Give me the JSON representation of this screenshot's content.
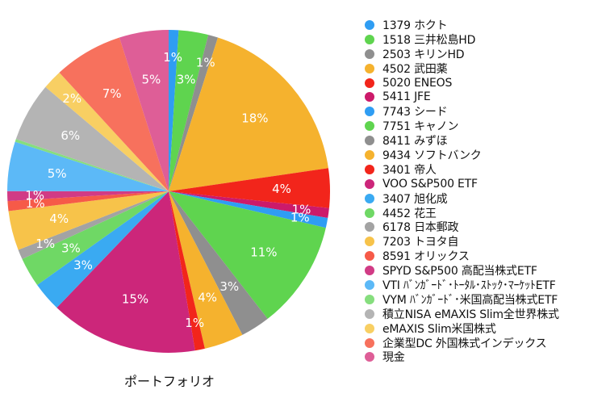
{
  "chart_data": {
    "type": "pie",
    "title": "ポートフォリオ",
    "slices": [
      {
        "name": "1379 ホクト",
        "value": 1,
        "label": "1%",
        "color": "#2f9df3"
      },
      {
        "name": "1518 三井松島HD",
        "value": 3,
        "label": "3%",
        "color": "#5fd44f"
      },
      {
        "name": "2503 キリンHD",
        "value": 1,
        "label": "1%",
        "color": "#8f8f8f"
      },
      {
        "name": "4502 武田薬",
        "value": 18,
        "label": "18%",
        "color": "#f5b22e"
      },
      {
        "name": "5020 ENEOS",
        "value": 4,
        "label": "4%",
        "color": "#f2251b"
      },
      {
        "name": "5411 JFE",
        "value": 1,
        "label": "1%",
        "color": "#cc1a6a"
      },
      {
        "name": "7743 シード",
        "value": 1,
        "label": "1%",
        "color": "#2f9df3"
      },
      {
        "name": "7751 キャノン",
        "value": 11,
        "label": "11%",
        "color": "#5fd44f"
      },
      {
        "name": "8411 みずほ",
        "value": 3,
        "label": "3%",
        "color": "#8f8f8f"
      },
      {
        "name": "9434 ソフトバンク",
        "value": 4,
        "label": "4%",
        "color": "#f5b22e"
      },
      {
        "name": "3401 帝人",
        "value": 1,
        "label": "1%",
        "color": "#f2251b"
      },
      {
        "name": "VOO S&P500 ETF",
        "value": 15,
        "label": "15%",
        "color": "#cc267a"
      },
      {
        "name": "3407 旭化成",
        "value": 3,
        "label": "3%",
        "color": "#3aaaf2"
      },
      {
        "name": "4452 花王",
        "value": 3,
        "label": "3%",
        "color": "#6fd865"
      },
      {
        "name": "6178 日本郵政",
        "value": 1,
        "label": "1%",
        "color": "#a3a3a3"
      },
      {
        "name": "7203 トヨタ自",
        "value": 4,
        "label": "4%",
        "color": "#f7c34a"
      },
      {
        "name": "8591 オリックス",
        "value": 1,
        "label": "1%",
        "color": "#f65a48"
      },
      {
        "name": "SPYD S&P500 高配当株式ETF",
        "value": 1,
        "label": "1%",
        "color": "#d13b85"
      },
      {
        "name": "VTI ﾊﾞﾝｶﾞｰﾄﾞ･ﾄｰﾀﾙ･ｽﾄｯｸ･ﾏｰｹｯﾄETF",
        "value": 5,
        "label": "5%",
        "color": "#5cb9f7"
      },
      {
        "name": "VYM ﾊﾞﾝｶﾞｰﾄﾞ･米国高配当株式ETF",
        "value": 0.3,
        "label": "",
        "color": "#86de7e"
      },
      {
        "name": "積立NISA eMAXIS Slim全世界株式",
        "value": 6,
        "label": "6%",
        "color": "#b4b4b4"
      },
      {
        "name": "eMAXIS Slim米国株式",
        "value": 2,
        "label": "2%",
        "color": "#f8cf63"
      },
      {
        "name": "企業型DC 外国株式インデックス",
        "value": 7,
        "label": "7%",
        "color": "#f7715d"
      },
      {
        "name": "現金",
        "value": 5,
        "label": "5%",
        "color": "#de5e97"
      }
    ]
  }
}
